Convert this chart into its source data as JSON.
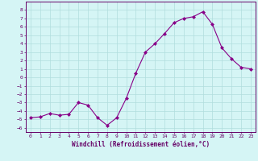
{
  "xlabel": "Windchill (Refroidissement éolien,°C)",
  "x_values": [
    0,
    1,
    2,
    3,
    4,
    5,
    6,
    7,
    8,
    9,
    10,
    11,
    12,
    13,
    14,
    15,
    16,
    17,
    18,
    19,
    20,
    21,
    22,
    23
  ],
  "y_values": [
    -4.8,
    -4.7,
    -4.3,
    -4.5,
    -4.4,
    -3.0,
    -3.3,
    -4.8,
    -5.7,
    -4.8,
    -2.5,
    0.5,
    3.0,
    4.0,
    5.2,
    6.5,
    7.0,
    7.2,
    7.8,
    6.3,
    3.5,
    2.2,
    1.2,
    1.0
  ],
  "line_color": "#880088",
  "marker": "D",
  "marker_size": 2.0,
  "background_color": "#d5f5f5",
  "grid_color": "#b0dede",
  "ylim": [
    -6.5,
    9.0
  ],
  "xlim": [
    -0.5,
    23.5
  ],
  "yticks": [
    -6,
    -5,
    -4,
    -3,
    -2,
    -1,
    0,
    1,
    2,
    3,
    4,
    5,
    6,
    7,
    8
  ],
  "xticks": [
    0,
    1,
    2,
    3,
    4,
    5,
    6,
    7,
    8,
    9,
    10,
    11,
    12,
    13,
    14,
    15,
    16,
    17,
    18,
    19,
    20,
    21,
    22,
    23
  ],
  "tick_fontsize": 4.5,
  "xlabel_fontsize": 5.5,
  "spine_color": "#660066"
}
